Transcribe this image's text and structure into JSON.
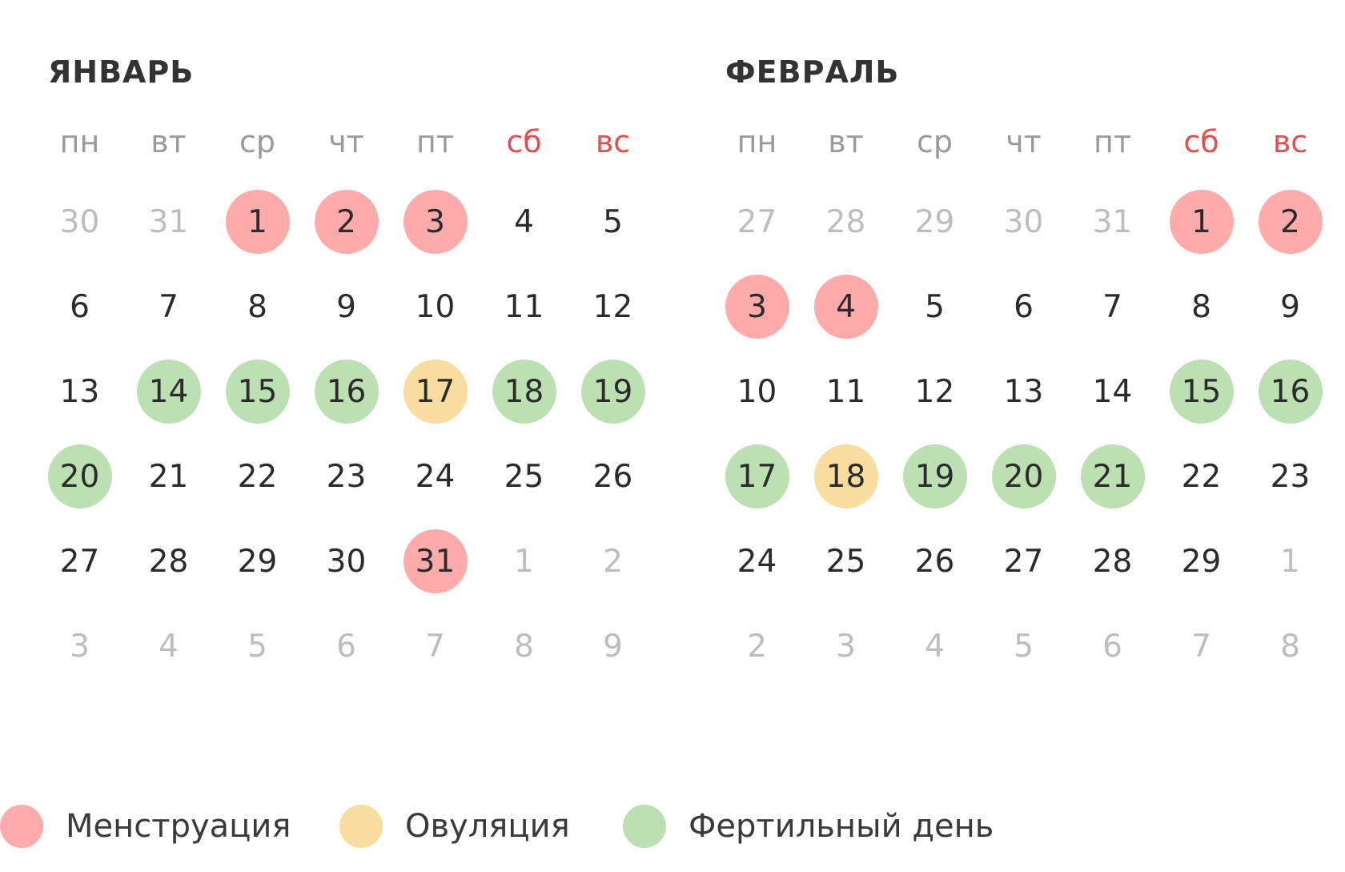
{
  "months": [
    {
      "id": "jan",
      "title": "ЯНВАРЬ",
      "weekdays": [
        {
          "label": "пн",
          "weekend": false
        },
        {
          "label": "вт",
          "weekend": false
        },
        {
          "label": "ср",
          "weekend": false
        },
        {
          "label": "чт",
          "weekend": false
        },
        {
          "label": "пт",
          "weekend": false
        },
        {
          "label": "сб",
          "weekend": true
        },
        {
          "label": "вс",
          "weekend": true
        }
      ],
      "days": [
        {
          "d": "30",
          "other": true
        },
        {
          "d": "31",
          "other": true
        },
        {
          "d": "1",
          "mark": "menstruation"
        },
        {
          "d": "2",
          "mark": "menstruation"
        },
        {
          "d": "3",
          "mark": "menstruation"
        },
        {
          "d": "4"
        },
        {
          "d": "5"
        },
        {
          "d": "6"
        },
        {
          "d": "7"
        },
        {
          "d": "8"
        },
        {
          "d": "9"
        },
        {
          "d": "10"
        },
        {
          "d": "11"
        },
        {
          "d": "12"
        },
        {
          "d": "13"
        },
        {
          "d": "14",
          "mark": "fertile"
        },
        {
          "d": "15",
          "mark": "fertile"
        },
        {
          "d": "16",
          "mark": "fertile"
        },
        {
          "d": "17",
          "mark": "ovulation"
        },
        {
          "d": "18",
          "mark": "fertile"
        },
        {
          "d": "19",
          "mark": "fertile"
        },
        {
          "d": "20",
          "mark": "fertile"
        },
        {
          "d": "21"
        },
        {
          "d": "22"
        },
        {
          "d": "23"
        },
        {
          "d": "24"
        },
        {
          "d": "25"
        },
        {
          "d": "26"
        },
        {
          "d": "27"
        },
        {
          "d": "28"
        },
        {
          "d": "29"
        },
        {
          "d": "30"
        },
        {
          "d": "31",
          "mark": "menstruation"
        },
        {
          "d": "1",
          "other": true
        },
        {
          "d": "2",
          "other": true
        },
        {
          "d": "3",
          "other": true
        },
        {
          "d": "4",
          "other": true
        },
        {
          "d": "5",
          "other": true
        },
        {
          "d": "6",
          "other": true
        },
        {
          "d": "7",
          "other": true
        },
        {
          "d": "8",
          "other": true
        },
        {
          "d": "9",
          "other": true
        }
      ]
    },
    {
      "id": "feb",
      "title": "ФЕВРАЛЬ",
      "weekdays": [
        {
          "label": "пн",
          "weekend": false
        },
        {
          "label": "вт",
          "weekend": false
        },
        {
          "label": "ср",
          "weekend": false
        },
        {
          "label": "чт",
          "weekend": false
        },
        {
          "label": "пт",
          "weekend": false
        },
        {
          "label": "сб",
          "weekend": true
        },
        {
          "label": "вс",
          "weekend": true
        }
      ],
      "days": [
        {
          "d": "27",
          "other": true
        },
        {
          "d": "28",
          "other": true
        },
        {
          "d": "29",
          "other": true
        },
        {
          "d": "30",
          "other": true
        },
        {
          "d": "31",
          "other": true
        },
        {
          "d": "1",
          "mark": "menstruation"
        },
        {
          "d": "2",
          "mark": "menstruation"
        },
        {
          "d": "3",
          "mark": "menstruation"
        },
        {
          "d": "4",
          "mark": "menstruation"
        },
        {
          "d": "5"
        },
        {
          "d": "6"
        },
        {
          "d": "7"
        },
        {
          "d": "8"
        },
        {
          "d": "9"
        },
        {
          "d": "10"
        },
        {
          "d": "11"
        },
        {
          "d": "12"
        },
        {
          "d": "13"
        },
        {
          "d": "14"
        },
        {
          "d": "15",
          "mark": "fertile"
        },
        {
          "d": "16",
          "mark": "fertile"
        },
        {
          "d": "17",
          "mark": "fertile"
        },
        {
          "d": "18",
          "mark": "ovulation"
        },
        {
          "d": "19",
          "mark": "fertile"
        },
        {
          "d": "20",
          "mark": "fertile"
        },
        {
          "d": "21",
          "mark": "fertile"
        },
        {
          "d": "22"
        },
        {
          "d": "23"
        },
        {
          "d": "24"
        },
        {
          "d": "25"
        },
        {
          "d": "26"
        },
        {
          "d": "27"
        },
        {
          "d": "28"
        },
        {
          "d": "29"
        },
        {
          "d": "1",
          "other": true
        },
        {
          "d": "2",
          "other": true
        },
        {
          "d": "3",
          "other": true
        },
        {
          "d": "4",
          "other": true
        },
        {
          "d": "5",
          "other": true
        },
        {
          "d": "6",
          "other": true
        },
        {
          "d": "7",
          "other": true
        },
        {
          "d": "8",
          "other": true
        }
      ]
    }
  ],
  "legend": {
    "menstruation": {
      "label": "Менструация",
      "color": "#ffabab"
    },
    "ovulation": {
      "label": "Овуляция",
      "color": "#f9dc9f"
    },
    "fertile": {
      "label": "Фертильный день",
      "color": "#bde0b2"
    }
  },
  "colors": {
    "weekend_text": "#e05050",
    "weekday_text": "#9a9a9a",
    "day_text": "#2b2b2b",
    "other_month_text": "#bdbdbd"
  }
}
